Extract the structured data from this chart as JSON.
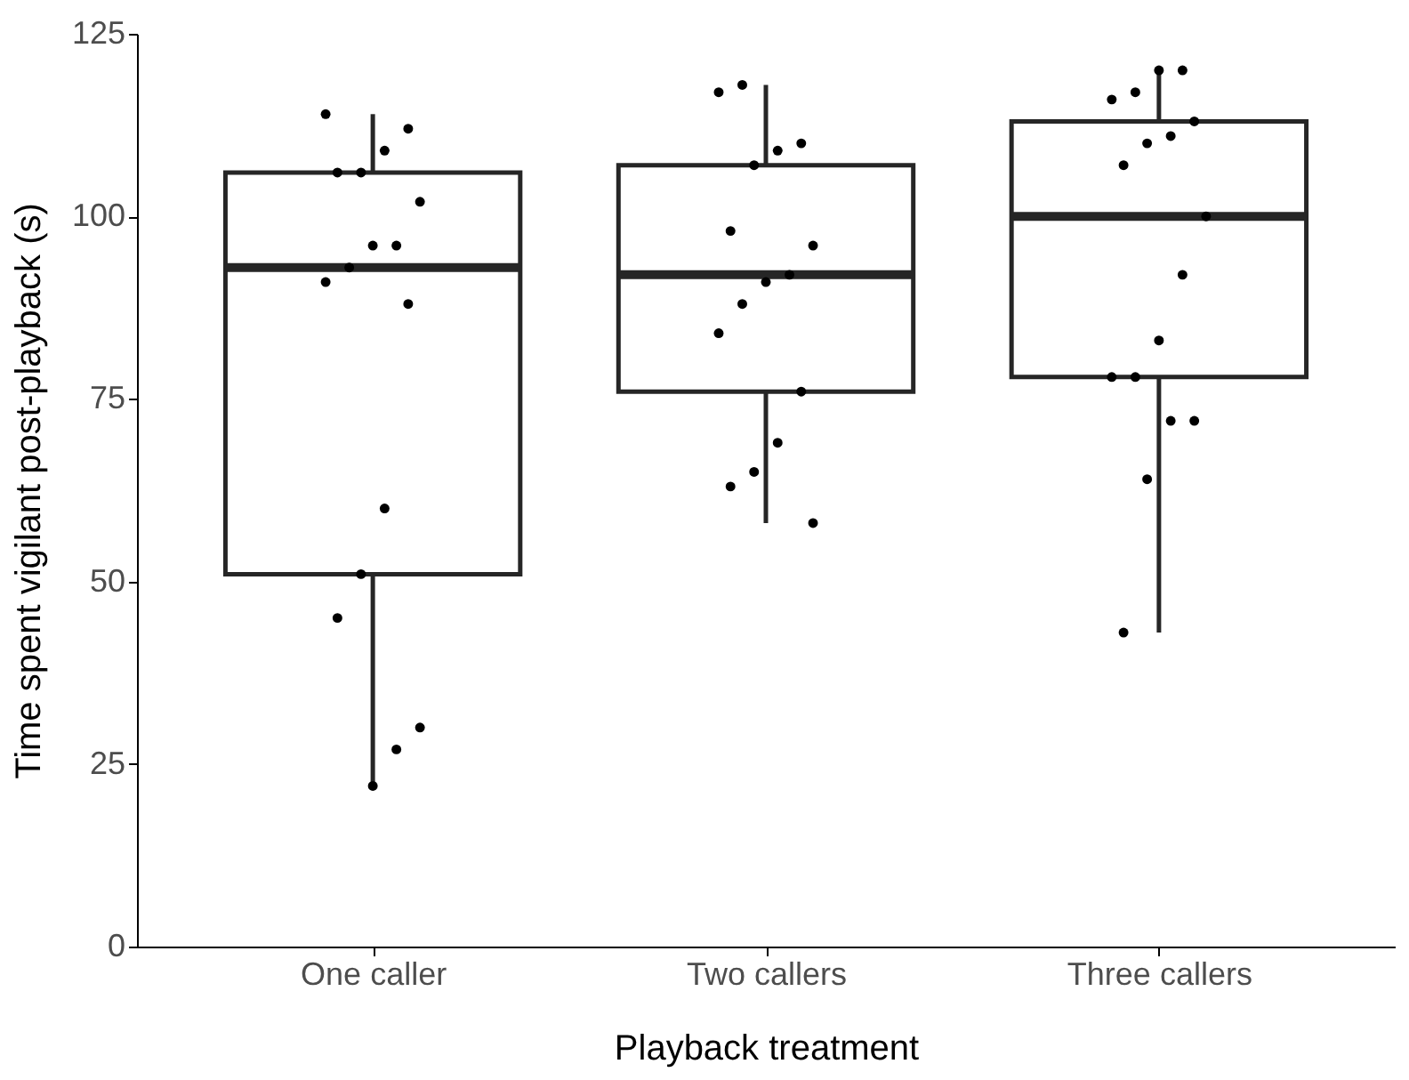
{
  "chart_data": {
    "type": "box",
    "xlabel": "Playback treatment",
    "ylabel": "Time spent vigilant post-playback (s)",
    "categories": [
      "One caller",
      "Two callers",
      "Three callers"
    ],
    "ylim": [
      0,
      125
    ],
    "yticks": [
      0,
      25,
      50,
      75,
      100,
      125
    ],
    "boxes": [
      {
        "low": 22,
        "q1": 51,
        "median": 93,
        "q3": 106,
        "high": 114
      },
      {
        "low": 58,
        "q1": 76,
        "median": 92,
        "q3": 107,
        "high": 118
      },
      {
        "low": 43,
        "q1": 78,
        "median": 100,
        "q3": 113,
        "high": 120
      }
    ],
    "series": [
      {
        "type": "scatter",
        "color": "#000000",
        "x": [
          "One caller",
          "One caller",
          "One caller",
          "One caller",
          "One caller",
          "One caller",
          "One caller",
          "One caller",
          "One caller",
          "One caller",
          "One caller",
          "One caller",
          "One caller",
          "One caller",
          "One caller",
          "One caller",
          "One caller",
          "Two callers",
          "Two callers",
          "Two callers",
          "Two callers",
          "Two callers",
          "Two callers",
          "Two callers",
          "Two callers",
          "Two callers",
          "Two callers",
          "Two callers",
          "Two callers",
          "Two callers",
          "Two callers",
          "Two callers",
          "Two callers",
          "Three callers",
          "Three callers",
          "Three callers",
          "Three callers",
          "Three callers",
          "Three callers",
          "Three callers",
          "Three callers",
          "Three callers",
          "Three callers",
          "Three callers",
          "Three callers",
          "Three callers",
          "Three callers",
          "Three callers",
          "Three callers",
          "Three callers"
        ],
        "values": [
          114,
          112,
          109,
          106,
          106,
          102,
          96,
          96,
          93,
          91,
          88,
          60,
          51,
          45,
          30,
          27,
          22,
          118,
          117,
          110,
          109,
          107,
          98,
          96,
          92,
          91,
          88,
          84,
          76,
          69,
          65,
          63,
          58,
          120,
          120,
          117,
          116,
          113,
          111,
          110,
          107,
          100,
          92,
          83,
          78,
          78,
          72,
          72,
          64,
          43
        ]
      }
    ]
  }
}
